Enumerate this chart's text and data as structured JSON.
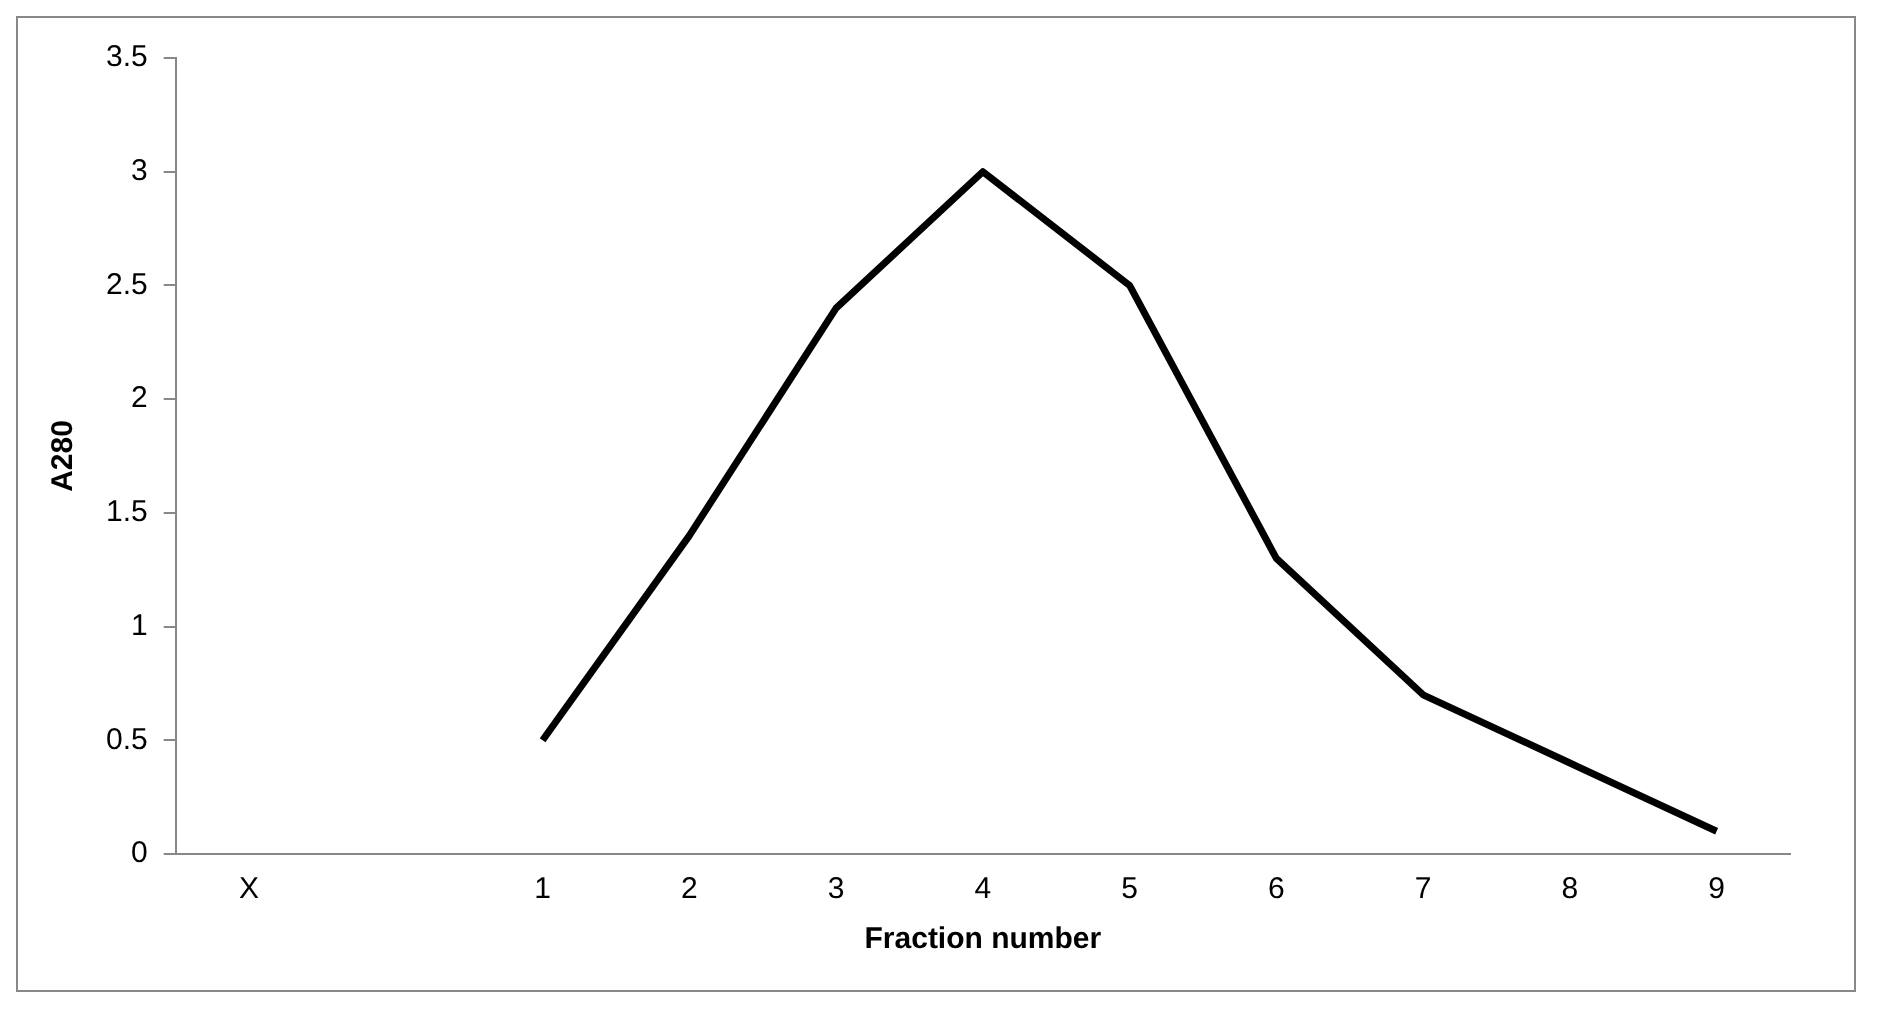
{
  "chart_data": {
    "type": "line",
    "xlabel": "Fraction number",
    "ylabel": "A280",
    "categories": [
      "X",
      null,
      "1",
      "2",
      "3",
      "4",
      "5",
      "6",
      "7",
      "8",
      "9"
    ],
    "values": [
      null,
      null,
      0.5,
      1.4,
      2.4,
      3.0,
      2.5,
      1.3,
      0.7,
      0.4,
      0.1
    ],
    "color": "#000000",
    "ylim": [
      0,
      3.5
    ],
    "yticks": [
      0,
      0.5,
      1,
      1.5,
      2,
      2.5,
      3,
      3.5
    ],
    "grid": false,
    "legend": false,
    "marker": "none",
    "line_style": "solid"
  }
}
